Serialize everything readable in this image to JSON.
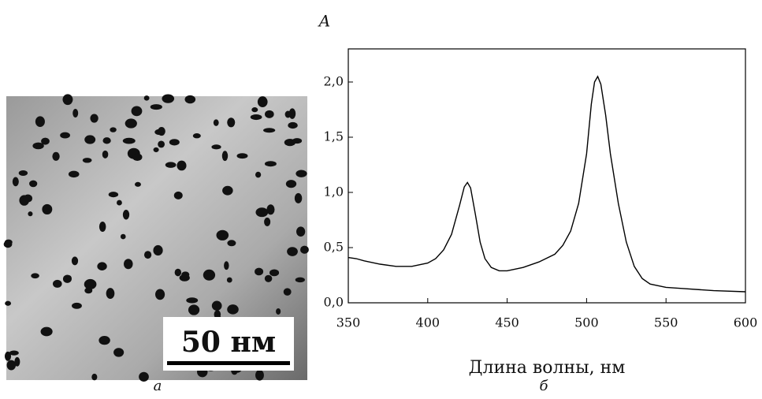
{
  "image": {
    "scale_label": "50 нм",
    "caption": "а"
  },
  "chart_data": {
    "type": "line",
    "caption": "б",
    "y_label": "A",
    "x_label": "Длина волны, нм",
    "x": [
      350,
      355,
      360,
      370,
      380,
      390,
      400,
      405,
      410,
      415,
      420,
      423,
      425,
      427,
      430,
      433,
      436,
      440,
      445,
      450,
      460,
      470,
      480,
      485,
      490,
      495,
      500,
      503,
      505,
      507,
      509,
      512,
      515,
      520,
      525,
      530,
      535,
      540,
      550,
      560,
      580,
      600
    ],
    "values": [
      0.41,
      0.4,
      0.38,
      0.35,
      0.33,
      0.33,
      0.36,
      0.4,
      0.48,
      0.62,
      0.88,
      1.05,
      1.09,
      1.04,
      0.8,
      0.55,
      0.4,
      0.32,
      0.29,
      0.29,
      0.32,
      0.37,
      0.44,
      0.52,
      0.65,
      0.9,
      1.35,
      1.8,
      2.0,
      2.05,
      1.98,
      1.7,
      1.35,
      0.9,
      0.55,
      0.33,
      0.22,
      0.17,
      0.14,
      0.13,
      0.11,
      0.1
    ],
    "color": "#000000",
    "xlim": [
      350,
      600
    ],
    "xticks": [
      350,
      400,
      450,
      500,
      550,
      600
    ],
    "ylim": [
      0,
      2.3
    ],
    "yticks": [
      {
        "value": 0,
        "label": "0,0"
      },
      {
        "value": 0.5,
        "label": "0,5"
      },
      {
        "value": 1,
        "label": "1,0"
      },
      {
        "value": 1.5,
        "label": "1,5"
      },
      {
        "value": 2,
        "label": "2,0"
      }
    ]
  }
}
